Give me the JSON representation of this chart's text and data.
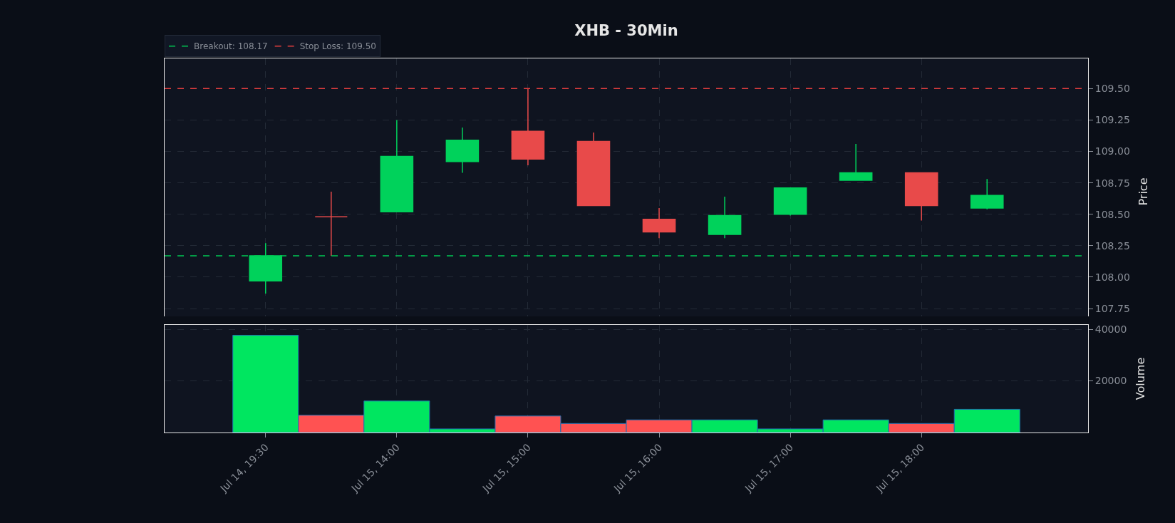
{
  "chart_data": [
    {
      "type": "candlestick",
      "title": "XHB - 30Min",
      "ylabel": "Price",
      "ohlc": [
        [
          107.97,
          108.27,
          107.87,
          108.17
        ],
        [
          108.48,
          108.68,
          108.17,
          108.48
        ],
        [
          108.52,
          109.25,
          108.52,
          108.96
        ],
        [
          108.92,
          109.19,
          108.83,
          109.09
        ],
        [
          109.16,
          109.5,
          108.89,
          108.94
        ],
        [
          109.08,
          109.15,
          108.57,
          108.57
        ],
        [
          108.46,
          108.55,
          108.31,
          108.36
        ],
        [
          108.34,
          108.64,
          108.31,
          108.49
        ],
        [
          108.5,
          108.71,
          108.49,
          108.71
        ],
        [
          108.77,
          109.06,
          108.77,
          108.83
        ],
        [
          108.83,
          108.83,
          108.45,
          108.57
        ],
        [
          108.55,
          108.78,
          108.54,
          108.65
        ]
      ],
      "colors": [
        "#00d25b",
        "#e84a4a",
        "#00d25b",
        "#00d25b",
        "#e84a4a",
        "#e84a4a",
        "#e84a4a",
        "#00d25b",
        "#00d25b",
        "#00d25b",
        "#e84a4a",
        "#00d25b"
      ],
      "ylim": [
        107.62,
        109.74
      ],
      "yticks": [
        {
          "value": 107.75,
          "label": "107.75"
        },
        {
          "value": 108,
          "label": "108.00"
        },
        {
          "value": 108.25,
          "label": "108.25"
        },
        {
          "value": 108.5,
          "label": "108.50"
        },
        {
          "value": 108.75,
          "label": "108.75"
        },
        {
          "value": 109,
          "label": "109.00"
        },
        {
          "value": 109.25,
          "label": "109.25"
        },
        {
          "value": 109.5,
          "label": "109.50"
        }
      ],
      "ref_lines": [
        {
          "axis": "y",
          "value": 108.17,
          "label": "Breakout: 108.17",
          "color": "#00c853",
          "line_style": "dashed"
        },
        {
          "axis": "y",
          "value": 109.5,
          "label": "Stop Loss: 109.50",
          "color": "#e53e3e",
          "line_style": "dashed"
        }
      ],
      "grid": true,
      "legend": "top left",
      "tick_labels": "y"
    },
    {
      "type": "bar",
      "ylabel": "Volume",
      "categories": [
        "Jul 14, 19:30",
        null,
        "Jul 15, 14:00",
        null,
        "Jul 15, 15:00",
        null,
        "Jul 15, 16:00",
        null,
        "Jul 15, 17:00",
        null,
        "Jul 15, 18:00",
        null
      ],
      "values": [
        37700,
        6700,
        12200,
        1400,
        6400,
        3500,
        4900,
        4900,
        1400,
        4900,
        3500,
        9000
      ],
      "colors": [
        "#00e660",
        "#ff5252",
        "#00e660",
        "#00e660",
        "#ff5252",
        "#ff5252",
        "#ff5252",
        "#00e660",
        "#00e660",
        "#00e660",
        "#ff5252",
        "#00e660"
      ],
      "ylim": [
        0,
        41700
      ],
      "yticks": [
        20000,
        40000
      ],
      "grid": true
    }
  ]
}
